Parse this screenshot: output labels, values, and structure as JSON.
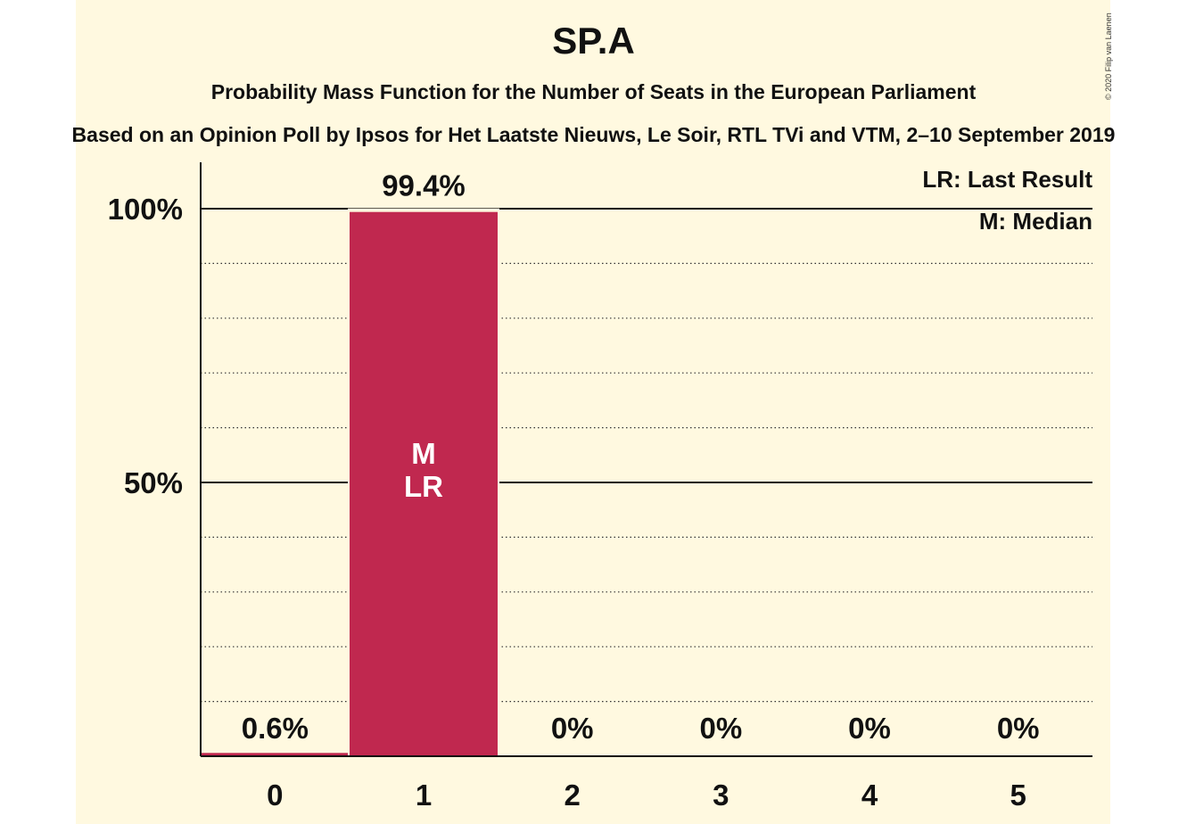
{
  "colors": {
    "background": "#fff9e0",
    "bar": "#c0284f",
    "axis": "#111111",
    "text": "#111111",
    "bar_label": "#ffffff"
  },
  "copyright": "© 2020 Filip van Laenen",
  "chart_data": {
    "type": "bar",
    "title": "SP.A",
    "subtitle": "Probability Mass Function for the Number of Seats in the European Parliament",
    "subtitle2": "Based on an Opinion Poll by Ipsos for Het Laatste Nieuws, Le Soir, RTL TVi and VTM, 2–10 September 2019",
    "categories": [
      "0",
      "1",
      "2",
      "3",
      "4",
      "5"
    ],
    "values": [
      0.6,
      99.4,
      0,
      0,
      0,
      0
    ],
    "value_labels": [
      "0.6%",
      "99.4%",
      "0%",
      "0%",
      "0%",
      "0%"
    ],
    "bar_annotations": [
      "",
      "M\nLR",
      "",
      "",
      "",
      ""
    ],
    "ylim": [
      0,
      100
    ],
    "y_ticks": [
      {
        "value": 100,
        "label": "100%"
      },
      {
        "value": 50,
        "label": "50%"
      }
    ],
    "minor_grid_step": 10,
    "legend": [
      "LR: Last Result",
      "M: Median"
    ],
    "legend_position": "top-right"
  }
}
